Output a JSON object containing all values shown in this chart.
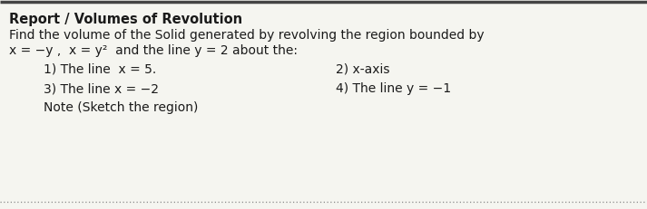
{
  "title": "Report / Volumes of Revolution",
  "body_line1": "Find the volume of the Solid generated by revolving the region bounded by",
  "body_line2": "x = −y ,  x = y²  and the line y = 2 about the:",
  "item1_left": "1) The line  x = 5.",
  "item1_right": "2) x-axis",
  "item2_left": "3) The line x = −2",
  "item2_right": "4) The line y = −1",
  "note": "Note (Sketch the region)",
  "bg_color": "#f5f5f0",
  "text_color": "#1a1a1a",
  "title_fontsize": 10.5,
  "body_fontsize": 10.0,
  "item_fontsize": 10.0,
  "note_fontsize": 10.0
}
